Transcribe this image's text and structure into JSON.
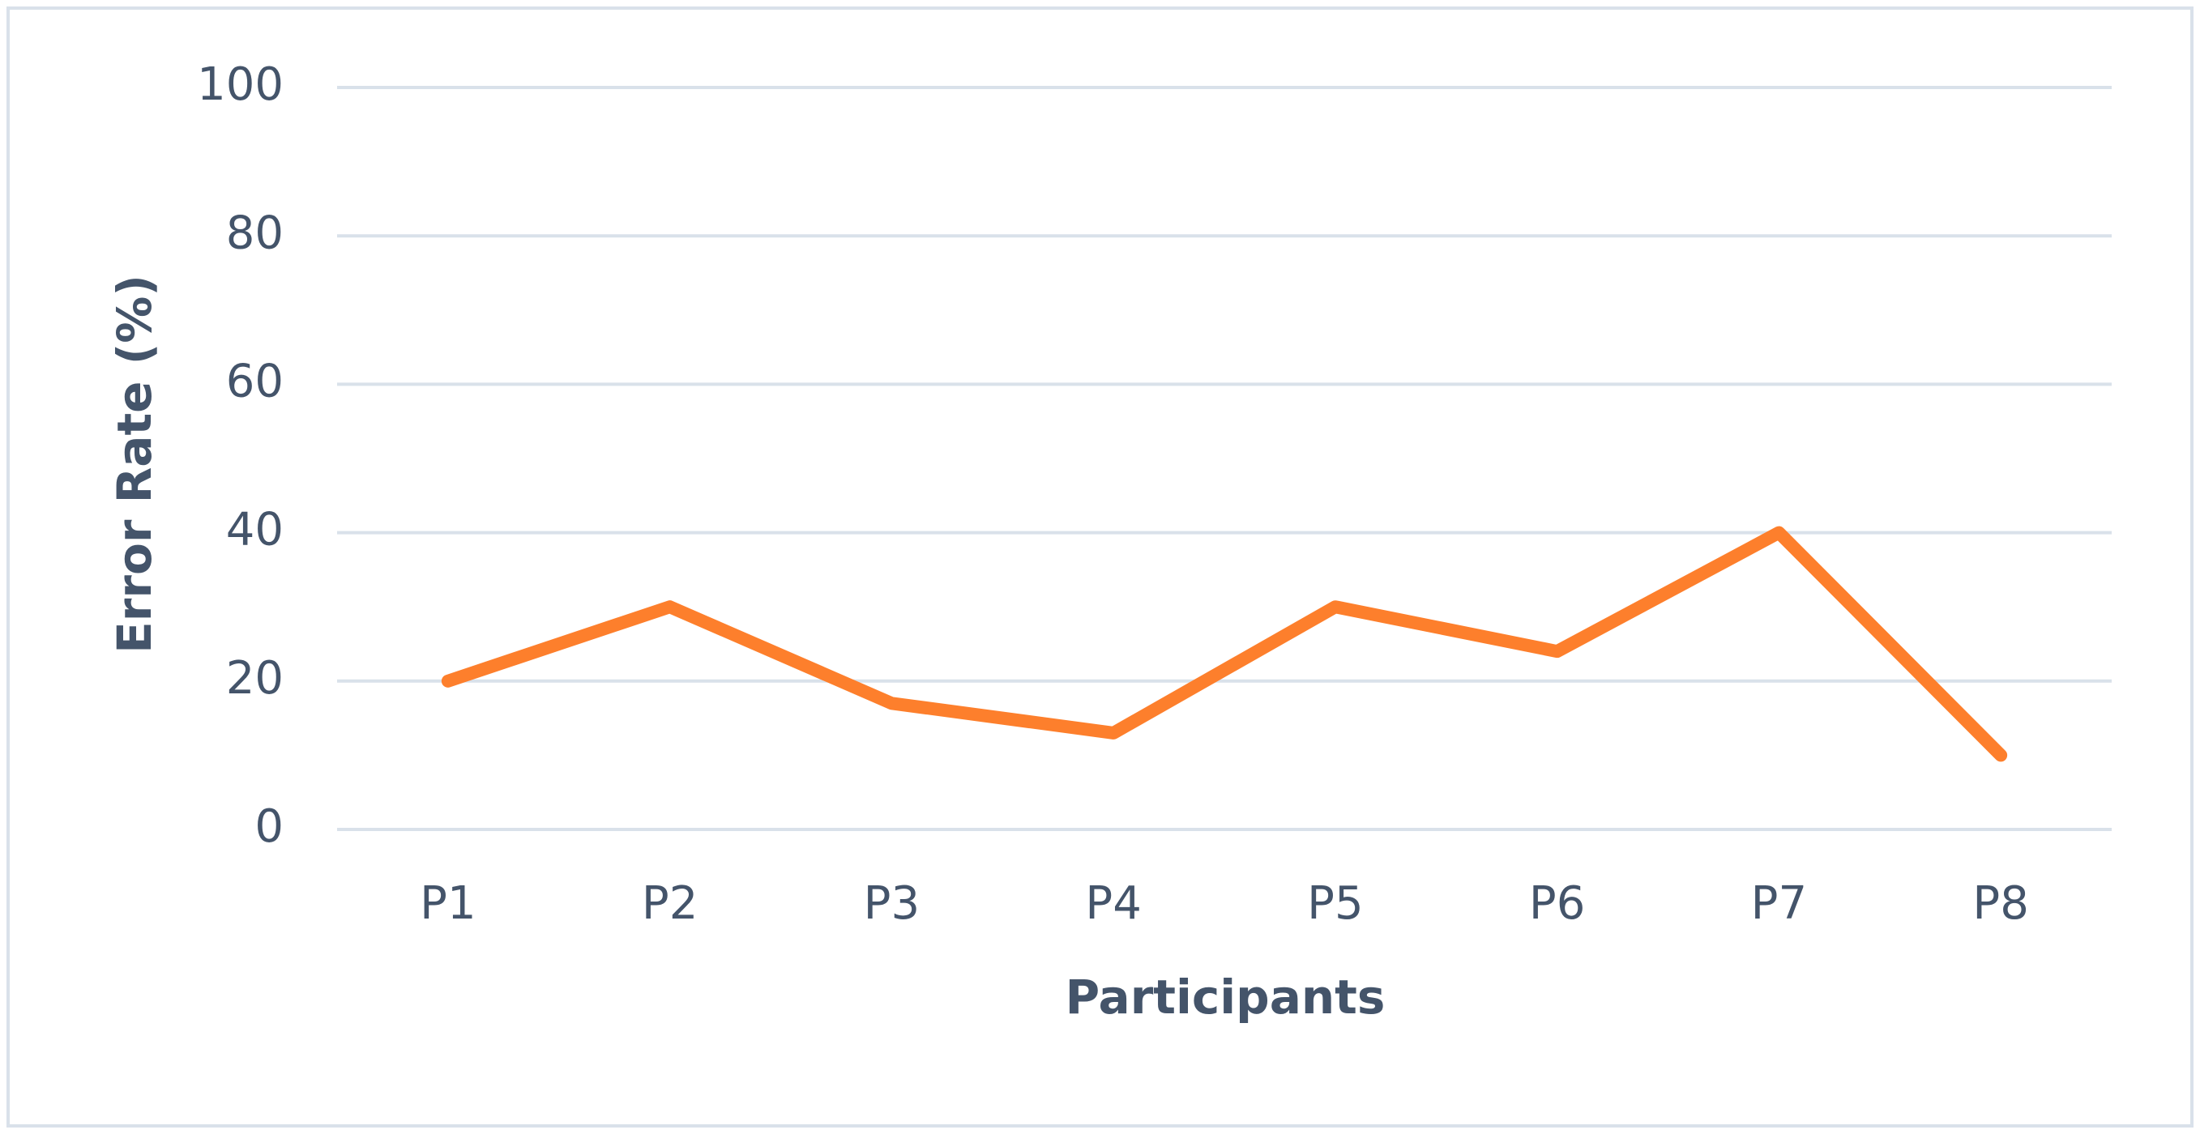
{
  "chart_data": {
    "type": "line",
    "x_label": "Participants",
    "y_label": "Error Rate (%)",
    "categories": [
      "P1",
      "P2",
      "P3",
      "P4",
      "P5",
      "P6",
      "P7",
      "P8"
    ],
    "values": [
      20,
      30,
      17,
      13,
      30,
      24,
      40,
      10
    ],
    "color": "#fd7f2c",
    "ylim": [
      0,
      100
    ],
    "yticks": [
      0,
      20,
      40,
      60,
      80,
      100
    ],
    "grid": true
  }
}
